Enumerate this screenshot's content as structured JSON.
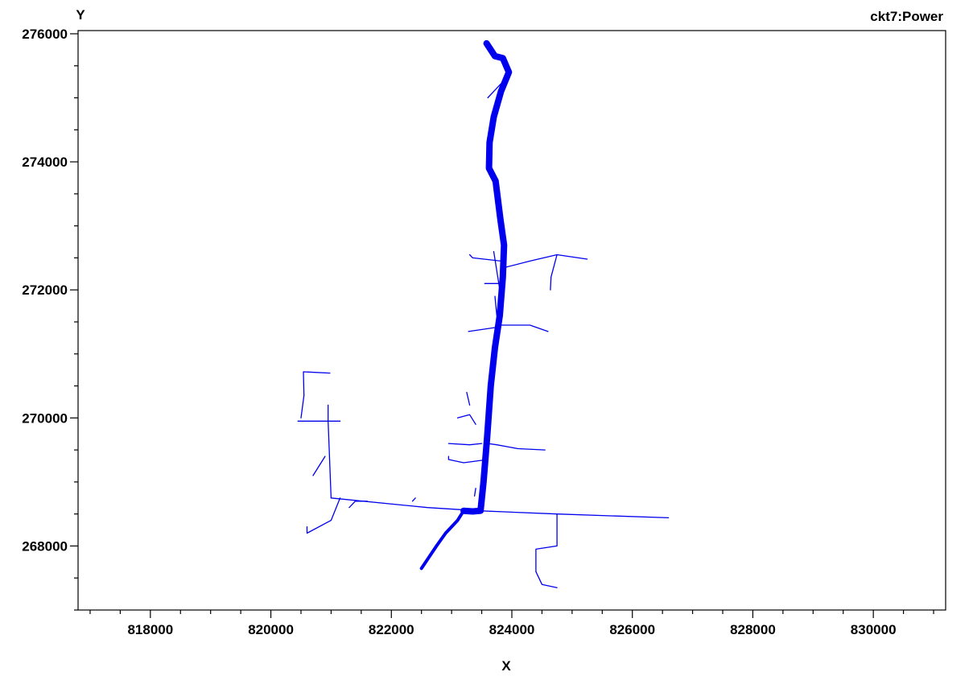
{
  "chart_data": {
    "type": "line",
    "title": "ckt7:Power",
    "xlabel": "X",
    "ylabel": "Y",
    "xlim": [
      816800,
      831200
    ],
    "ylim": [
      267000,
      276050
    ],
    "grid": false,
    "x_ticks": [
      818000,
      820000,
      822000,
      824000,
      826000,
      828000,
      830000
    ],
    "x_tick_labels": [
      "818000",
      "820000",
      "822000",
      "824000",
      "826000",
      "828000",
      "830000"
    ],
    "y_ticks": [
      268000,
      270000,
      272000,
      274000,
      276000
    ],
    "y_tick_labels": [
      "268000",
      "270000",
      "272000",
      "274000",
      "276000"
    ],
    "line_color": "#0000ee",
    "series": [
      {
        "weight": "heavy",
        "points": [
          [
            823580,
            275850
          ],
          [
            823720,
            275650
          ],
          [
            823850,
            275620
          ],
          [
            823950,
            275400
          ],
          [
            823820,
            275100
          ],
          [
            823700,
            274700
          ],
          [
            823630,
            274300
          ],
          [
            823620,
            273900
          ],
          [
            823730,
            273700
          ],
          [
            823810,
            273100
          ],
          [
            823870,
            272700
          ],
          [
            823850,
            272200
          ],
          [
            823800,
            271600
          ],
          [
            823720,
            271100
          ],
          [
            823650,
            270500
          ],
          [
            823590,
            269700
          ],
          [
            823530,
            269000
          ],
          [
            823480,
            268550
          ],
          [
            823350,
            268540
          ],
          [
            823200,
            268550
          ]
        ]
      },
      {
        "weight": "medium",
        "points": [
          [
            823200,
            268550
          ],
          [
            823100,
            268400
          ],
          [
            822900,
            268200
          ],
          [
            822750,
            268000
          ],
          [
            822500,
            267650
          ]
        ]
      },
      {
        "weight": "thin",
        "points": [
          [
            821000,
            268750
          ],
          [
            822600,
            268600
          ],
          [
            823450,
            268550
          ],
          [
            824750,
            268500
          ],
          [
            826600,
            268440
          ]
        ]
      },
      {
        "weight": "thin",
        "points": [
          [
            821000,
            268750
          ],
          [
            820950,
            269950
          ]
        ]
      },
      {
        "weight": "thin",
        "points": [
          [
            820950,
            269950
          ],
          [
            821150,
            269950
          ]
        ]
      },
      {
        "weight": "thin",
        "points": [
          [
            820950,
            269950
          ],
          [
            820950,
            270200
          ]
        ]
      },
      {
        "weight": "thin",
        "points": [
          [
            820450,
            269950
          ],
          [
            820950,
            269950
          ]
        ]
      },
      {
        "weight": "thin",
        "points": [
          [
            820500,
            270000
          ],
          [
            820550,
            270350
          ],
          [
            820540,
            270720
          ],
          [
            820980,
            270700
          ]
        ]
      },
      {
        "weight": "thin",
        "points": [
          [
            821150,
            268750
          ],
          [
            821000,
            268400
          ],
          [
            820600,
            268200
          ],
          [
            820600,
            268300
          ]
        ]
      },
      {
        "weight": "thin",
        "points": [
          [
            821300,
            268600
          ],
          [
            821400,
            268700
          ],
          [
            821600,
            268700
          ]
        ]
      },
      {
        "weight": "thin",
        "points": [
          [
            820900,
            269400
          ],
          [
            820700,
            269100
          ]
        ]
      },
      {
        "weight": "thin",
        "points": [
          [
            822400,
            268750
          ],
          [
            822350,
            268700
          ]
        ]
      },
      {
        "weight": "thin",
        "points": [
          [
            823300,
            272550
          ],
          [
            823350,
            272500
          ],
          [
            823820,
            272450
          ]
        ]
      },
      {
        "weight": "thin",
        "points": [
          [
            823880,
            272350
          ],
          [
            824300,
            272450
          ],
          [
            824750,
            272550
          ],
          [
            825250,
            272480
          ]
        ]
      },
      {
        "weight": "thin",
        "points": [
          [
            824750,
            272550
          ],
          [
            824650,
            272200
          ],
          [
            824640,
            272000
          ]
        ]
      },
      {
        "weight": "thin",
        "points": [
          [
            823550,
            272100
          ],
          [
            823830,
            272100
          ]
        ]
      },
      {
        "weight": "thin",
        "points": [
          [
            823280,
            271350
          ],
          [
            823780,
            271420
          ]
        ]
      },
      {
        "weight": "thin",
        "points": [
          [
            823780,
            271450
          ],
          [
            824050,
            271450
          ],
          [
            824300,
            271450
          ],
          [
            824600,
            271350
          ]
        ]
      },
      {
        "weight": "thin",
        "points": [
          [
            823600,
            269600
          ],
          [
            823750,
            269580
          ],
          [
            824100,
            269520
          ],
          [
            824550,
            269500
          ]
        ]
      },
      {
        "weight": "thin",
        "points": [
          [
            823600,
            269350
          ],
          [
            823200,
            269300
          ],
          [
            822950,
            269350
          ],
          [
            822950,
            269400
          ]
        ]
      },
      {
        "weight": "thin",
        "points": [
          [
            822950,
            269600
          ],
          [
            823300,
            269580
          ],
          [
            823500,
            269600
          ]
        ]
      },
      {
        "weight": "thin",
        "points": [
          [
            823100,
            270000
          ],
          [
            823300,
            270050
          ],
          [
            823400,
            269900
          ]
        ]
      },
      {
        "weight": "thin",
        "points": [
          [
            823250,
            270400
          ],
          [
            823300,
            270200
          ]
        ]
      },
      {
        "weight": "thin",
        "points": [
          [
            824750,
            268500
          ],
          [
            824750,
            268000
          ],
          [
            824400,
            267950
          ],
          [
            824400,
            267600
          ]
        ]
      },
      {
        "weight": "thin",
        "points": [
          [
            824400,
            267600
          ],
          [
            824500,
            267400
          ],
          [
            824750,
            267350
          ]
        ]
      },
      {
        "weight": "thin",
        "points": [
          [
            823400,
            268900
          ],
          [
            823380,
            268780
          ]
        ]
      },
      {
        "weight": "thin",
        "points": [
          [
            823900,
            275300
          ],
          [
            823700,
            275100
          ],
          [
            823600,
            275000
          ]
        ]
      },
      {
        "weight": "thin",
        "points": [
          [
            823700,
            272600
          ],
          [
            823800,
            272000
          ]
        ]
      },
      {
        "weight": "thin",
        "points": [
          [
            823720,
            271900
          ],
          [
            823750,
            271600
          ]
        ]
      }
    ]
  }
}
